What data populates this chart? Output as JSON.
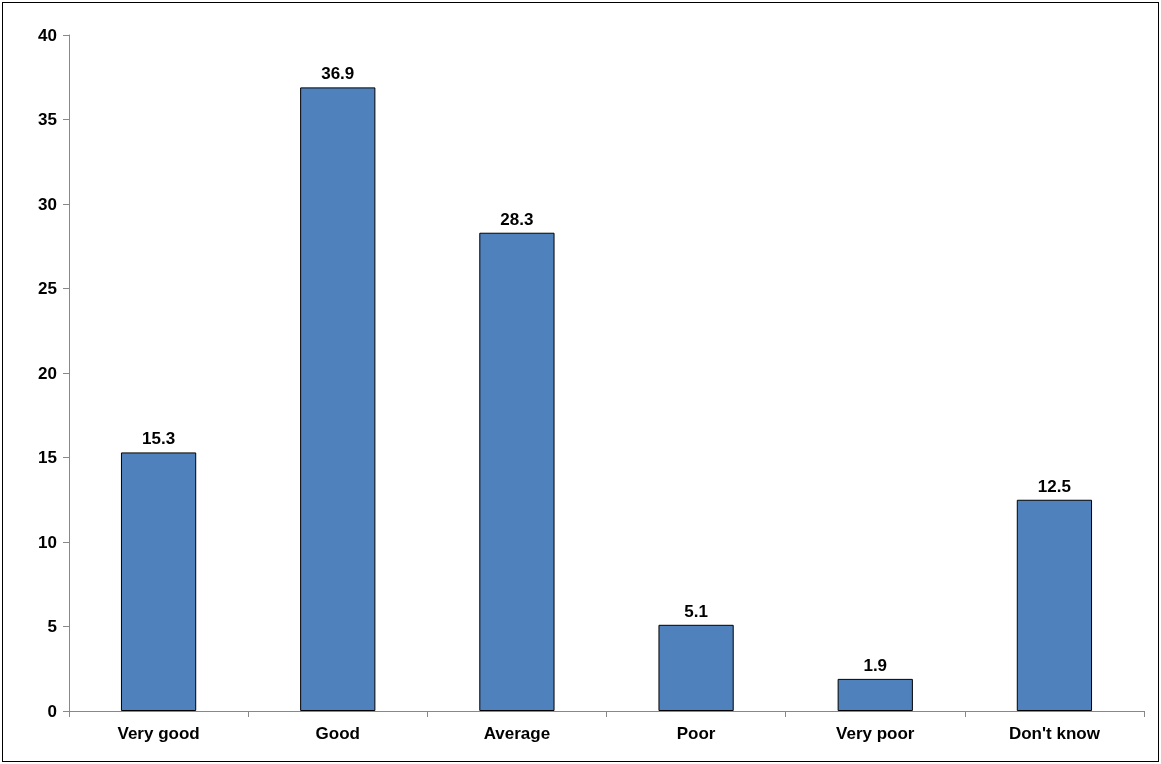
{
  "chart_data": {
    "type": "bar",
    "categories": [
      "Very good",
      "Good",
      "Average",
      "Poor",
      "Very poor",
      "Don't know"
    ],
    "values": [
      15.3,
      36.9,
      28.3,
      5.1,
      1.9,
      12.5
    ],
    "color": "#4f81bd",
    "ylim": [
      0,
      40
    ],
    "yticks": [
      0,
      5,
      10,
      15,
      20,
      25,
      30,
      35,
      40
    ],
    "data_labels": true
  }
}
